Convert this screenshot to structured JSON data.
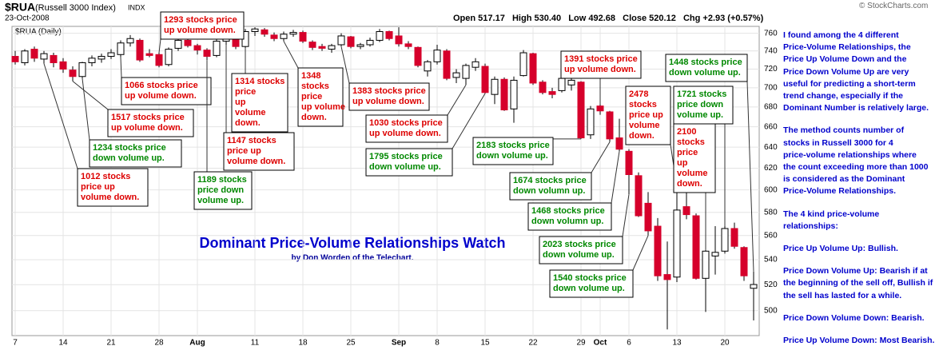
{
  "header": {
    "symbol": "$RUA",
    "name": "(Russell 3000 Index)",
    "exchange": "INDX",
    "date": "23-Oct-2008",
    "quote": "Open 517.17   High 530.40   Low 492.68   Close 520.12   Chg +2.93 (+0.57%)",
    "credit": "© StockCharts.com",
    "panel_label": "$RUA (Daily)"
  },
  "chart_data": {
    "type": "candlestick",
    "title": "Dominant Price-Volume Relationships Watch",
    "subtitle": "by Don Worden of the Telechart.",
    "categories": [
      "7",
      null,
      null,
      null,
      null,
      "14",
      null,
      null,
      null,
      null,
      "21",
      null,
      null,
      null,
      null,
      "28",
      null,
      null,
      null,
      "Aug",
      null,
      null,
      null,
      null,
      null,
      "11",
      null,
      null,
      null,
      null,
      "18",
      null,
      null,
      null,
      null,
      "25",
      null,
      null,
      null,
      null,
      "Sep",
      null,
      null,
      null,
      "8",
      null,
      null,
      null,
      null,
      "15",
      null,
      null,
      null,
      null,
      "22",
      null,
      null,
      null,
      null,
      "29",
      null,
      "Oct",
      null,
      null,
      "6",
      null,
      null,
      null,
      null,
      "13",
      null,
      null,
      null,
      null,
      "20",
      null,
      null,
      null
    ],
    "open": [
      734,
      727,
      742,
      731,
      735,
      728,
      719,
      712,
      727,
      731,
      734,
      736,
      749,
      752,
      737,
      736,
      725,
      743,
      752,
      746,
      741,
      735,
      751,
      754,
      745,
      762,
      764,
      758,
      754,
      759,
      761,
      750,
      745,
      742,
      747,
      756,
      745,
      747,
      752,
      762,
      757,
      748,
      744,
      718,
      728,
      740,
      711,
      710,
      722,
      723,
      693,
      709,
      678,
      713,
      737,
      706,
      696,
      697,
      703,
      706,
      652,
      681,
      675,
      649,
      636,
      613,
      588,
      568,
      528,
      526,
      585,
      577,
      525,
      543,
      547,
      566,
      550,
      517.17
    ],
    "high": [
      740,
      742,
      745,
      740,
      738,
      732,
      723,
      728,
      735,
      737,
      742,
      752,
      758,
      754,
      742,
      738,
      744,
      754,
      756,
      748,
      743,
      753,
      757,
      756,
      765,
      767,
      766,
      761,
      762,
      764,
      763,
      752,
      748,
      748,
      760,
      757,
      749,
      755,
      765,
      763,
      767,
      751,
      745,
      730,
      747,
      742,
      720,
      726,
      732,
      726,
      712,
      711,
      712,
      741,
      738,
      708,
      700,
      713,
      711,
      707,
      681,
      683,
      676,
      668,
      638,
      616,
      598,
      575,
      555,
      603,
      600,
      579,
      548,
      568,
      568,
      571,
      551,
      530.4
    ],
    "low": [
      725,
      724,
      728,
      726,
      722,
      716,
      707,
      710,
      723,
      727,
      731,
      733,
      745,
      728,
      733,
      722,
      723,
      740,
      744,
      736,
      730,
      733,
      747,
      742,
      743,
      757,
      756,
      751,
      751,
      756,
      749,
      741,
      740,
      738,
      745,
      743,
      742,
      745,
      750,
      752,
      745,
      742,
      722,
      712,
      725,
      708,
      705,
      703,
      718,
      694,
      683,
      676,
      664,
      712,
      703,
      693,
      689,
      695,
      697,
      648,
      648,
      672,
      645,
      636,
      596,
      576,
      560,
      523,
      486,
      522,
      574,
      524,
      499,
      528,
      545,
      549,
      523,
      492.68
    ],
    "close": [
      728,
      740,
      732,
      737,
      727,
      720,
      712,
      727,
      732,
      734,
      738,
      749,
      754,
      730,
      735,
      724,
      742,
      752,
      746,
      741,
      734,
      751,
      755,
      745,
      762,
      765,
      759,
      754,
      759,
      761,
      751,
      744,
      743,
      746,
      757,
      745,
      747,
      752,
      762,
      754,
      748,
      745,
      724,
      728,
      741,
      710,
      716,
      724,
      728,
      695,
      709,
      677,
      708,
      738,
      705,
      695,
      693,
      710,
      708,
      649,
      678,
      676,
      648,
      638,
      614,
      577,
      564,
      527,
      524,
      582,
      578,
      525,
      547,
      546,
      566,
      551,
      527,
      520.12
    ],
    "up_color": "#ffffff",
    "down_color": "#d6002b",
    "log_scale": true,
    "grid": true,
    "ylim": [
      481.5,
      768
    ],
    "yticks": [
      500,
      520,
      540,
      560,
      580,
      600,
      620,
      640,
      660,
      680,
      700,
      720,
      740,
      760
    ],
    "annotations": [
      {
        "lines": [
          "1293 stocks price",
          "up volume down."
        ],
        "color": "#dd0000"
      },
      {
        "lines": [
          "1066 stocks price",
          "up volume down."
        ],
        "color": "#dd0000"
      },
      {
        "lines": [
          "1517 stocks price",
          "up volume down."
        ],
        "color": "#dd0000"
      },
      {
        "lines": [
          "1234 stocks price",
          "down volume up."
        ],
        "color": "#008800"
      },
      {
        "lines": [
          "1012 stocks",
          "price up",
          "volume down."
        ],
        "color": "#dd0000"
      },
      {
        "lines": [
          "1189 stocks",
          "price down",
          "volume up."
        ],
        "color": "#008800"
      },
      {
        "lines": [
          "1147 stocks",
          "price up",
          "volume down."
        ],
        "color": "#dd0000"
      },
      {
        "lines": [
          "1314 stocks",
          "price",
          "up",
          "volume",
          "down."
        ],
        "color": "#dd0000"
      },
      {
        "lines": [
          "1348",
          "stocks",
          "price",
          "up volume",
          "down."
        ],
        "color": "#dd0000"
      },
      {
        "lines": [
          "1383 stocks price",
          "up volume down."
        ],
        "color": "#dd0000"
      },
      {
        "lines": [
          "1030 stocks price",
          "up volume down."
        ],
        "color": "#dd0000"
      },
      {
        "lines": [
          "1795 stocks price",
          "down volume up."
        ],
        "color": "#008800"
      },
      {
        "lines": [
          "2183 stocks price",
          "down volume up."
        ],
        "color": "#008800"
      },
      {
        "lines": [
          "1391 stocks price",
          "up volume down."
        ],
        "color": "#dd0000"
      },
      {
        "lines": [
          "1674 stocks price",
          "down volumn up."
        ],
        "color": "#008800"
      },
      {
        "lines": [
          "1468 stocks price",
          "down volumn up."
        ],
        "color": "#008800"
      },
      {
        "lines": [
          "2023 stocks price",
          "down volume up."
        ],
        "color": "#008800"
      },
      {
        "lines": [
          "1540 stocks price",
          "down volume up."
        ],
        "color": "#008800"
      },
      {
        "lines": [
          "2478",
          "stocks",
          "price up",
          "volume",
          "down."
        ],
        "color": "#dd0000"
      },
      {
        "lines": [
          "2100",
          "stocks",
          "price",
          "up",
          "volume",
          "down."
        ],
        "color": "#dd0000"
      },
      {
        "lines": [
          "1721 stocks",
          "price down",
          "volume up."
        ],
        "color": "#008800"
      },
      {
        "lines": [
          "1448 stocks price",
          "down volume up."
        ],
        "color": "#008800"
      }
    ]
  },
  "right_panel": {
    "paragraphs": [
      [
        "I found among the 4 different",
        "Price-Volume Relationships, the",
        "Price Up Volume Down and the",
        "Price Down Volume Up are very",
        "useful for predicting a short-term",
        "trend change, especially if the",
        "Dominant Number is relatively large."
      ],
      [
        "The method counts number of",
        "stocks in Russell 3000 for 4",
        "price-volume relationships where",
        "the count exceeding more than 1000",
        "is considered as the Dominant",
        "Price-Volume Relationships."
      ],
      [
        "The 4 kind price-volume",
        "relationships:"
      ],
      [
        "Price Up Volume Up: Bullish."
      ],
      [
        "Price Down Volume Up: Bearish if at",
        "the beginning of the sell off, Bullish if",
        "the sell has lasted for a while."
      ],
      [
        "Price Down Volume Down: Bearish."
      ],
      [
        "Price Up Volume Down: Most Bearish."
      ]
    ]
  }
}
